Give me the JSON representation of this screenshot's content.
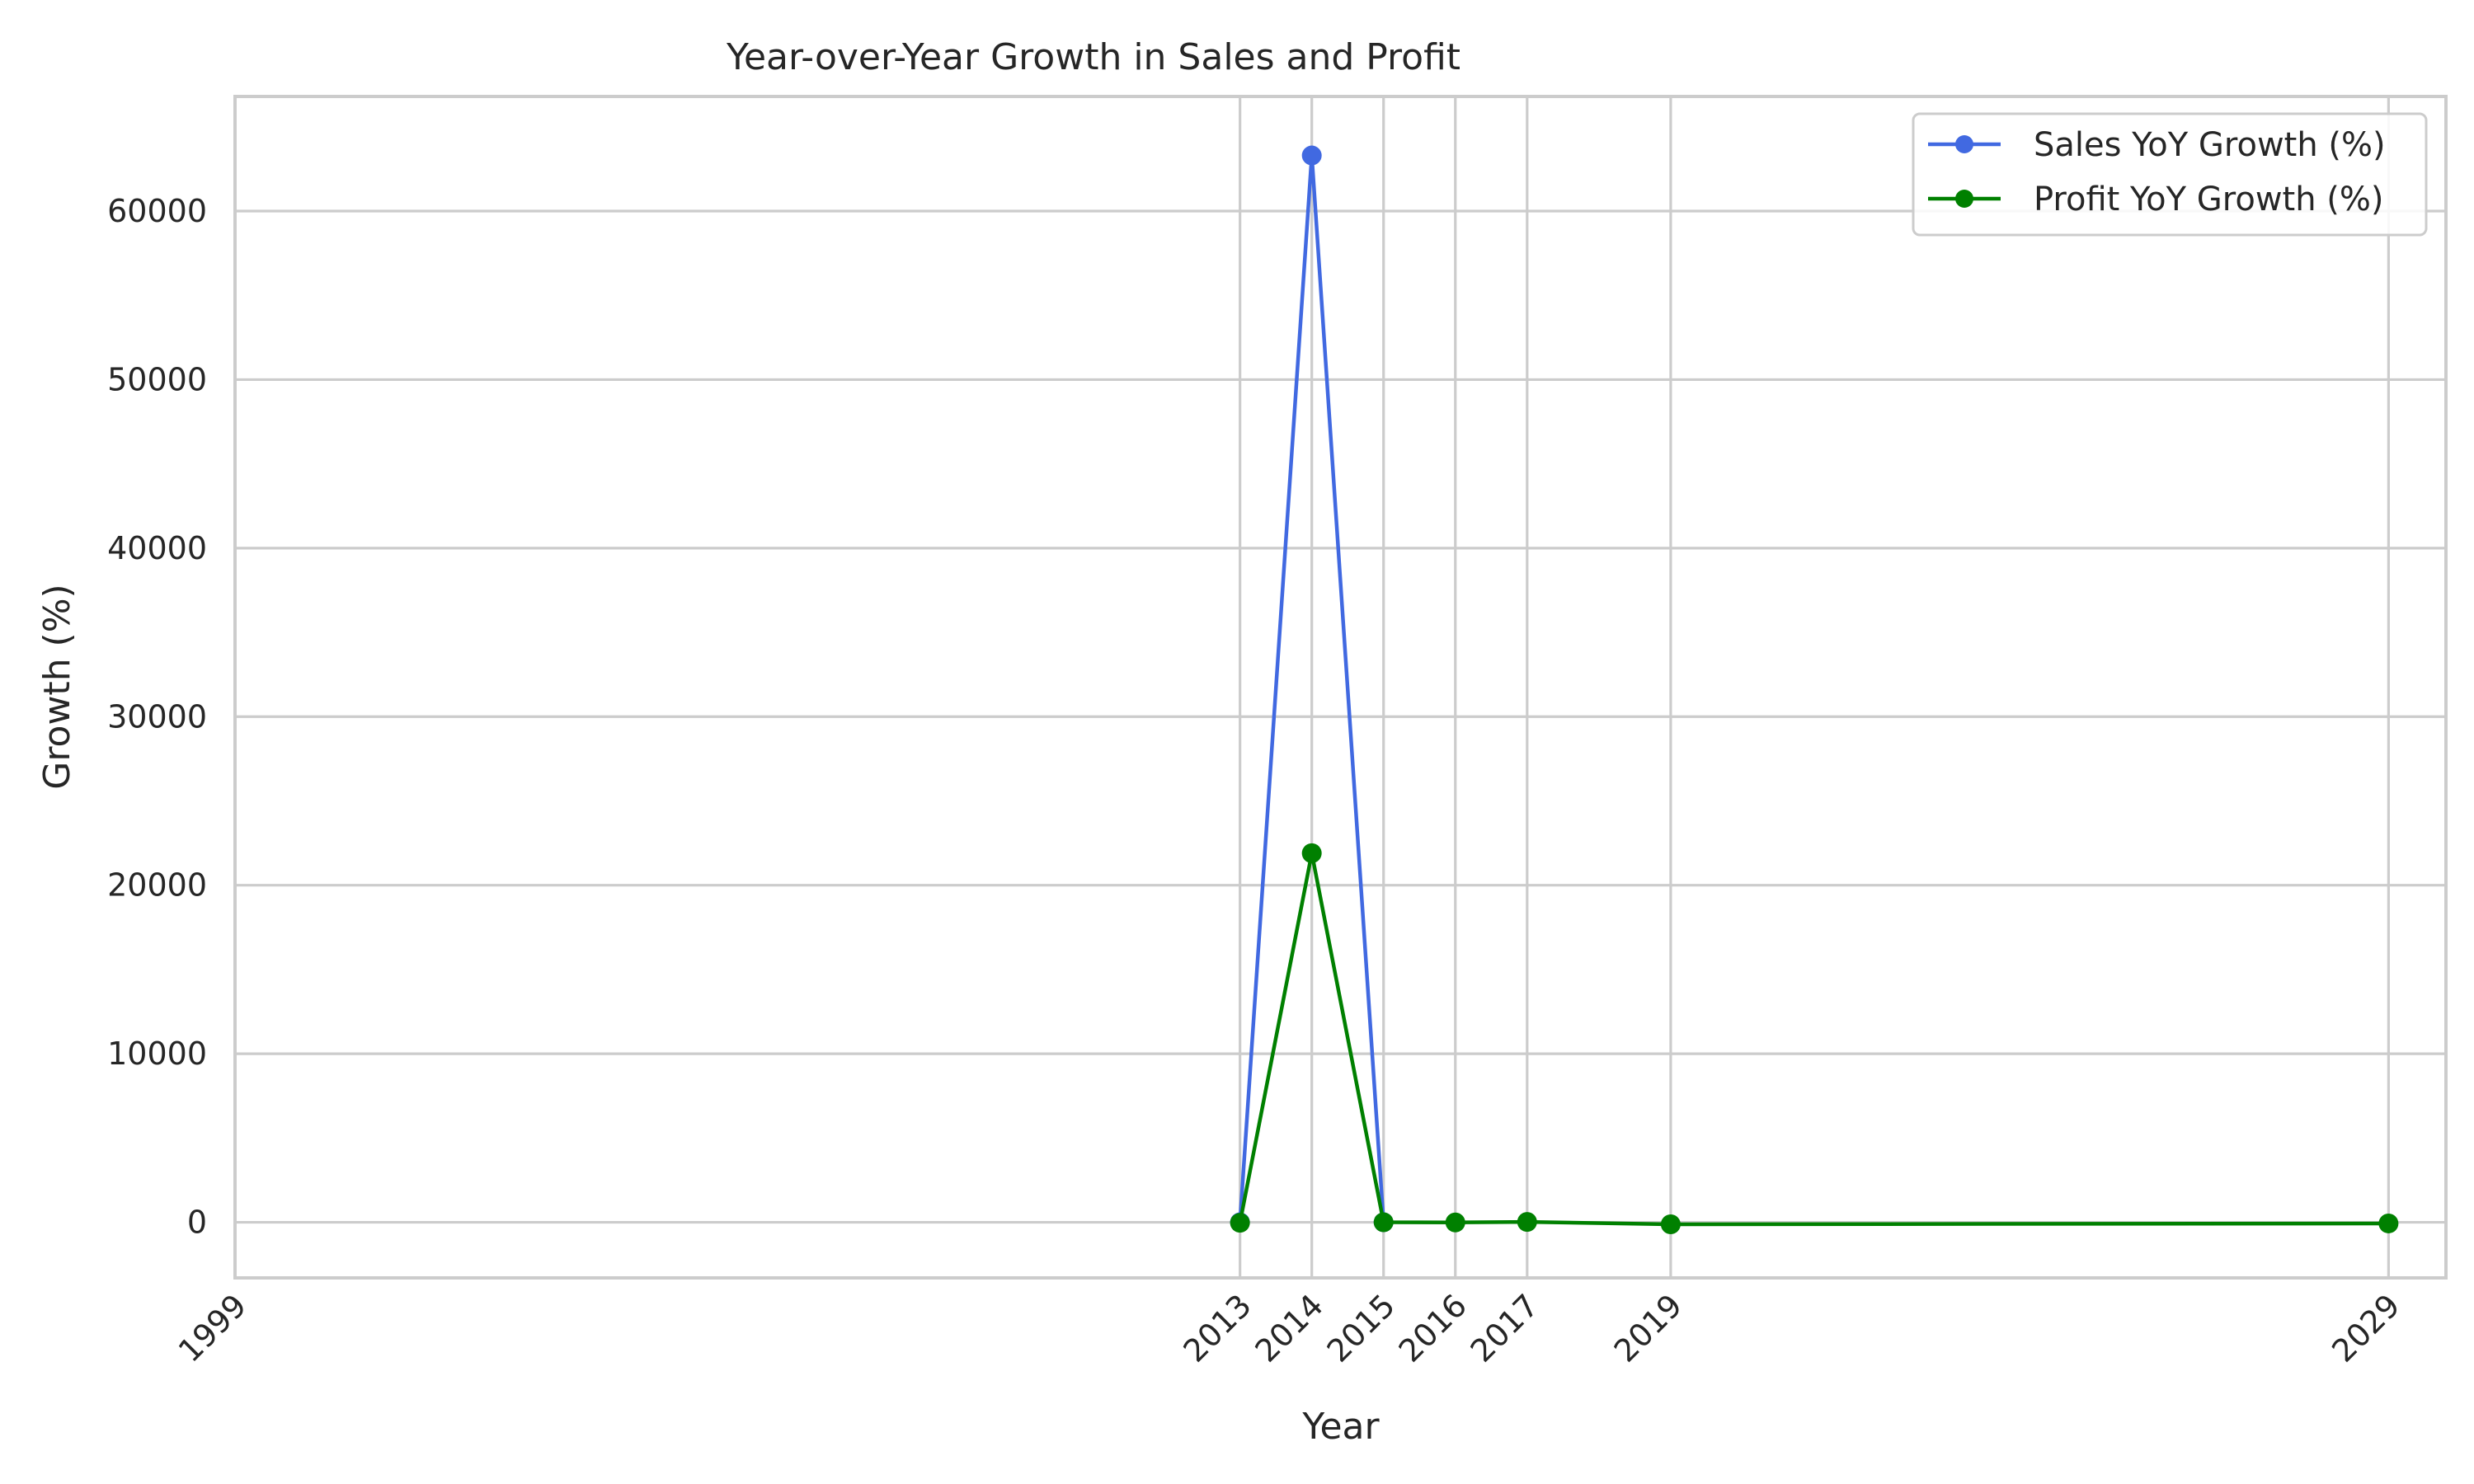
{
  "chart_data": {
    "type": "line",
    "title": "Year-over-Year Growth in Sales and Profit",
    "xlabel": "Year",
    "ylabel": "Growth (%)",
    "x_ticks": [
      1999,
      2013,
      2014,
      2015,
      2016,
      2017,
      2019,
      2029
    ],
    "y_ticks": [
      0,
      10000,
      20000,
      30000,
      40000,
      50000,
      60000
    ],
    "xlim": [
      1999,
      2029.8
    ],
    "ylim": [
      -3300,
      66800
    ],
    "grid": true,
    "legend_position": "top-right",
    "series": [
      {
        "name": "Sales YoY Growth (%)",
        "color": "#4169e1",
        "x": [
          2013,
          2014,
          2015
        ],
        "y": [
          0,
          63300,
          0
        ]
      },
      {
        "name": "Profit YoY Growth (%)",
        "color": "#008000",
        "x": [
          2013,
          2014,
          2015,
          2016,
          2017,
          2019,
          2029
        ],
        "y": [
          -30,
          21900,
          0,
          -10,
          20,
          -120,
          -70
        ]
      }
    ]
  }
}
